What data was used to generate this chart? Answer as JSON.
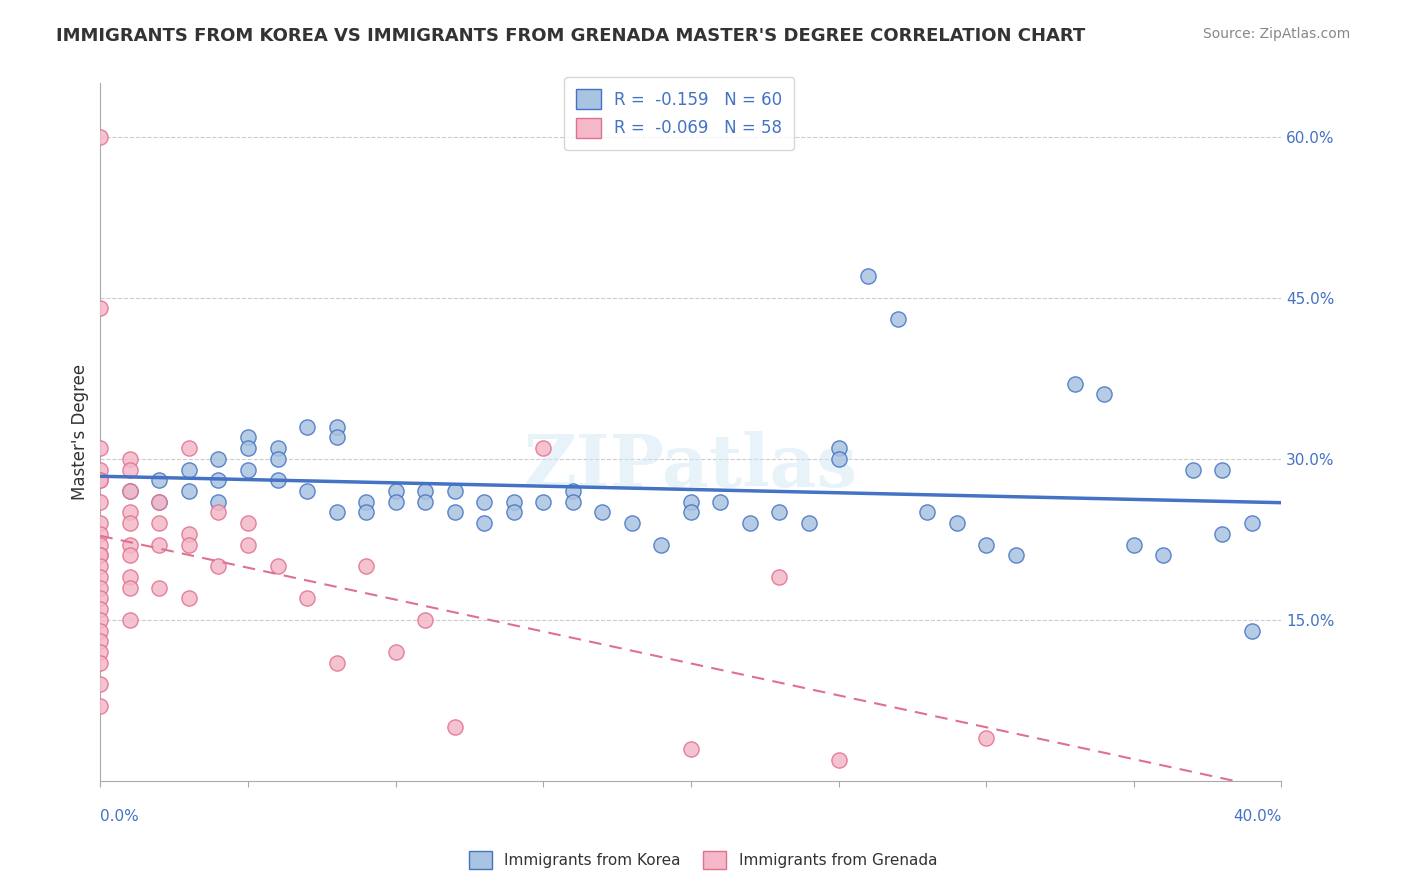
{
  "title": "IMMIGRANTS FROM KOREA VS IMMIGRANTS FROM GRENADA MASTER'S DEGREE CORRELATION CHART",
  "source": "Source: ZipAtlas.com",
  "ylabel": "Master's Degree",
  "yticks": [
    "15.0%",
    "30.0%",
    "45.0%",
    "60.0%"
  ],
  "ytick_vals": [
    0.15,
    0.3,
    0.45,
    0.6
  ],
  "xlim": [
    0.0,
    0.4
  ],
  "ylim": [
    0.0,
    0.65
  ],
  "legend_r_korea": "-0.159",
  "legend_n_korea": "60",
  "legend_r_grenada": "-0.069",
  "legend_n_grenada": "58",
  "watermark": "ZIPatlas",
  "korea_color": "#a8c4e0",
  "korea_line_color": "#4472c4",
  "grenada_color": "#f4b8c8",
  "grenada_line_color": "#e07090",
  "korea_scatter": [
    [
      0.01,
      0.27
    ],
    [
      0.02,
      0.26
    ],
    [
      0.02,
      0.28
    ],
    [
      0.03,
      0.27
    ],
    [
      0.03,
      0.29
    ],
    [
      0.04,
      0.3
    ],
    [
      0.04,
      0.28
    ],
    [
      0.04,
      0.26
    ],
    [
      0.05,
      0.32
    ],
    [
      0.05,
      0.31
    ],
    [
      0.05,
      0.29
    ],
    [
      0.06,
      0.31
    ],
    [
      0.06,
      0.3
    ],
    [
      0.06,
      0.28
    ],
    [
      0.07,
      0.33
    ],
    [
      0.07,
      0.27
    ],
    [
      0.08,
      0.33
    ],
    [
      0.08,
      0.32
    ],
    [
      0.08,
      0.25
    ],
    [
      0.09,
      0.26
    ],
    [
      0.09,
      0.25
    ],
    [
      0.1,
      0.27
    ],
    [
      0.1,
      0.26
    ],
    [
      0.11,
      0.27
    ],
    [
      0.11,
      0.26
    ],
    [
      0.12,
      0.27
    ],
    [
      0.12,
      0.25
    ],
    [
      0.13,
      0.26
    ],
    [
      0.13,
      0.24
    ],
    [
      0.14,
      0.26
    ],
    [
      0.14,
      0.25
    ],
    [
      0.15,
      0.26
    ],
    [
      0.16,
      0.27
    ],
    [
      0.16,
      0.26
    ],
    [
      0.17,
      0.25
    ],
    [
      0.18,
      0.24
    ],
    [
      0.19,
      0.22
    ],
    [
      0.2,
      0.26
    ],
    [
      0.2,
      0.25
    ],
    [
      0.21,
      0.26
    ],
    [
      0.22,
      0.24
    ],
    [
      0.23,
      0.25
    ],
    [
      0.24,
      0.24
    ],
    [
      0.25,
      0.31
    ],
    [
      0.25,
      0.3
    ],
    [
      0.26,
      0.47
    ],
    [
      0.27,
      0.43
    ],
    [
      0.28,
      0.25
    ],
    [
      0.29,
      0.24
    ],
    [
      0.3,
      0.22
    ],
    [
      0.31,
      0.21
    ],
    [
      0.33,
      0.37
    ],
    [
      0.34,
      0.36
    ],
    [
      0.35,
      0.22
    ],
    [
      0.36,
      0.21
    ],
    [
      0.37,
      0.29
    ],
    [
      0.38,
      0.29
    ],
    [
      0.38,
      0.23
    ],
    [
      0.39,
      0.24
    ],
    [
      0.39,
      0.14
    ]
  ],
  "grenada_scatter": [
    [
      0.0,
      0.6
    ],
    [
      0.0,
      0.44
    ],
    [
      0.0,
      0.31
    ],
    [
      0.0,
      0.29
    ],
    [
      0.0,
      0.28
    ],
    [
      0.0,
      0.28
    ],
    [
      0.0,
      0.26
    ],
    [
      0.0,
      0.24
    ],
    [
      0.0,
      0.23
    ],
    [
      0.0,
      0.22
    ],
    [
      0.0,
      0.21
    ],
    [
      0.0,
      0.21
    ],
    [
      0.0,
      0.2
    ],
    [
      0.0,
      0.19
    ],
    [
      0.0,
      0.18
    ],
    [
      0.0,
      0.17
    ],
    [
      0.0,
      0.16
    ],
    [
      0.0,
      0.15
    ],
    [
      0.0,
      0.14
    ],
    [
      0.0,
      0.13
    ],
    [
      0.0,
      0.12
    ],
    [
      0.0,
      0.11
    ],
    [
      0.0,
      0.09
    ],
    [
      0.0,
      0.07
    ],
    [
      0.01,
      0.3
    ],
    [
      0.01,
      0.29
    ],
    [
      0.01,
      0.27
    ],
    [
      0.01,
      0.25
    ],
    [
      0.01,
      0.24
    ],
    [
      0.01,
      0.22
    ],
    [
      0.01,
      0.21
    ],
    [
      0.01,
      0.19
    ],
    [
      0.01,
      0.18
    ],
    [
      0.01,
      0.15
    ],
    [
      0.02,
      0.26
    ],
    [
      0.02,
      0.24
    ],
    [
      0.02,
      0.22
    ],
    [
      0.02,
      0.18
    ],
    [
      0.03,
      0.31
    ],
    [
      0.03,
      0.23
    ],
    [
      0.03,
      0.22
    ],
    [
      0.03,
      0.17
    ],
    [
      0.04,
      0.25
    ],
    [
      0.04,
      0.2
    ],
    [
      0.05,
      0.24
    ],
    [
      0.05,
      0.22
    ],
    [
      0.06,
      0.2
    ],
    [
      0.07,
      0.17
    ],
    [
      0.08,
      0.11
    ],
    [
      0.09,
      0.2
    ],
    [
      0.1,
      0.12
    ],
    [
      0.11,
      0.15
    ],
    [
      0.12,
      0.05
    ],
    [
      0.15,
      0.31
    ],
    [
      0.2,
      0.03
    ],
    [
      0.23,
      0.19
    ],
    [
      0.25,
      0.02
    ],
    [
      0.3,
      0.04
    ]
  ]
}
